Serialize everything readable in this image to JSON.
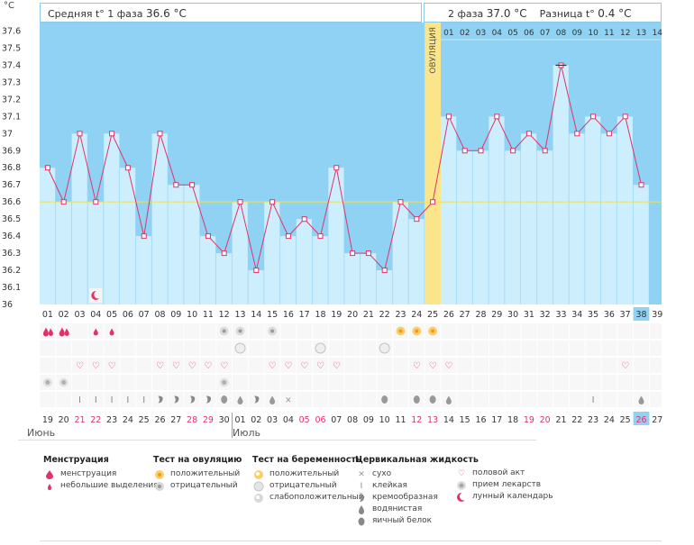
{
  "header": {
    "phase1_label": "Средняя t° 1 фаза",
    "phase1_value": "36.6 °C",
    "phase2_label": "2 фаза",
    "phase2_value": "37.0 °C",
    "diff_label": "Разница t°",
    "diff_value": "0.4 °C"
  },
  "chart_data": {
    "type": "bar",
    "title": "",
    "ylabel": "°C",
    "ylim": [
      36,
      37.65
    ],
    "yticks": [
      "36",
      "36.1",
      "36.2",
      "36.3",
      "36.4",
      "36.5",
      "36.6",
      "36.7",
      "36.8",
      "36.9",
      "37",
      "37.1",
      "37.2",
      "37.3",
      "37.4",
      "37.5",
      "37.6"
    ],
    "cycle_days": [
      "01",
      "02",
      "03",
      "04",
      "05",
      "06",
      "07",
      "08",
      "09",
      "10",
      "11",
      "12",
      "13",
      "14",
      "15",
      "16",
      "17",
      "18",
      "19",
      "20",
      "21",
      "22",
      "23",
      "24",
      "25",
      "26",
      "27",
      "28",
      "29",
      "30",
      "31",
      "32",
      "33",
      "34",
      "35",
      "36",
      "37",
      "38",
      "39"
    ],
    "post_ov_days": [
      "01",
      "02",
      "03",
      "04",
      "05",
      "06",
      "07",
      "08",
      "09",
      "10",
      "11",
      "12",
      "13",
      "14"
    ],
    "dates": [
      "19",
      "20",
      "21",
      "22",
      "23",
      "24",
      "25",
      "26",
      "27",
      "28",
      "29",
      "30",
      "01",
      "02",
      "03",
      "04",
      "05",
      "06",
      "07",
      "08",
      "09",
      "10",
      "11",
      "12",
      "13",
      "14",
      "15",
      "16",
      "17",
      "18",
      "19",
      "20",
      "21",
      "22",
      "23",
      "24",
      "25",
      "26",
      "27"
    ],
    "red_dates": [
      3,
      4,
      10,
      11,
      17,
      18,
      24,
      25,
      31,
      32,
      38
    ],
    "temps": [
      36.8,
      36.6,
      37.0,
      36.6,
      37.0,
      36.8,
      36.4,
      37.0,
      36.7,
      36.7,
      36.4,
      36.3,
      36.6,
      36.2,
      36.6,
      36.4,
      36.5,
      36.4,
      36.8,
      36.3,
      36.3,
      36.2,
      36.6,
      36.5,
      36.6,
      37.1,
      36.9,
      36.9,
      37.1,
      36.9,
      37.0,
      36.9,
      37.4,
      37.0,
      37.1,
      37.0,
      37.1,
      36.7
    ],
    "coverline": 36.6,
    "ovulation_day": 25,
    "ovulation_label": "ОВУЛЯЦИЯ",
    "highlight_day": 38,
    "months": [
      "Июнь",
      "Июль"
    ],
    "marks": {
      "menstruation": [
        1,
        2
      ],
      "spotting": [
        4,
        5
      ],
      "ovtest_positive": [
        23,
        24,
        25
      ],
      "ovtest_negative": [
        12,
        13,
        15
      ],
      "preg_negative": [
        13,
        18,
        22
      ],
      "sex": [
        3,
        4,
        5,
        8,
        9,
        10,
        11,
        12,
        15,
        16,
        17,
        18,
        19,
        24,
        25,
        26,
        37
      ],
      "medication": [
        1,
        2,
        12
      ],
      "sticky": [
        3,
        4,
        5,
        6,
        7,
        35
      ],
      "creamy": [
        8,
        9,
        10,
        11,
        14
      ],
      "watery": [
        13,
        15,
        26,
        38
      ],
      "eggwhite": [
        12,
        22,
        24,
        25
      ],
      "dry": [
        16
      ],
      "lunar": [
        4
      ]
    }
  },
  "legend": {
    "menstruation": {
      "title": "Менструация",
      "items": [
        "менструация",
        "небольшие выделения"
      ]
    },
    "ovtest": {
      "title": "Тест на овуляцию",
      "items": [
        "положительный",
        "отрицательный"
      ]
    },
    "pregtest": {
      "title": "Тест на беременность",
      "items": [
        "положительный",
        "отрицательный",
        "слабоположительный"
      ]
    },
    "cervical": {
      "title": "Цервикальная жидкость",
      "items": [
        "сухо",
        "клейкая",
        "кремообразная",
        "водянистая",
        "яичный белок"
      ]
    },
    "other": {
      "items": [
        "половой акт",
        "прием лекарств",
        "лунный календарь"
      ]
    }
  },
  "colors": {
    "bar": "#cdeefc",
    "plotbg": "#8fd2f3",
    "line": "#e0336a",
    "ovulation": "#fbe58a",
    "coverline": "#f0e04a",
    "highlight": "#8fd2f3",
    "red": "#e0336a"
  }
}
